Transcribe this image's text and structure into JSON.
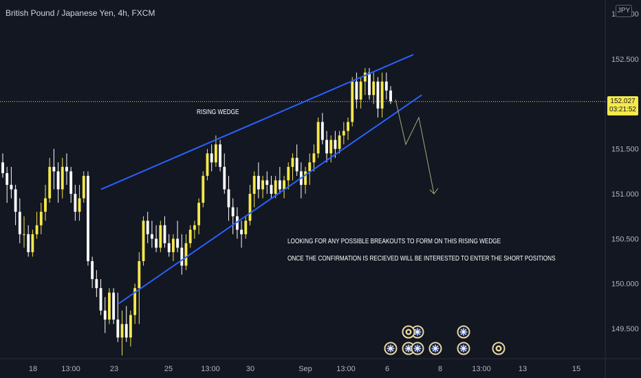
{
  "header": {
    "symbol_title": "British Pound / Japanese Yen, 4h, FXCM",
    "currency_badge": "JPY"
  },
  "price_axis": {
    "top_label": "153.000",
    "labels": [
      "152.500",
      "151.500",
      "151.000",
      "150.500",
      "150.000",
      "149.500"
    ],
    "current_price": "152.027",
    "countdown": "03:21:52"
  },
  "time_axis": {
    "labels": [
      "18",
      "13:00",
      "23",
      "25",
      "13:00",
      "30",
      "Sep",
      "13:00",
      "6",
      "8",
      "13:00",
      "13",
      "15"
    ]
  },
  "drawings": {
    "pattern_label": "RISING WEDGE",
    "note_line_1": "LOOKING FOR ANY POSSIBLE BREAKOUTS TO FORM ON THIS RISING WEDGE",
    "note_line_2": "ONCE THE CONFIRMATION IS RECIEVED WILL BE INTERESTED TO ENTER THE SHORT POSITIONS"
  },
  "event_icons": [
    "uk-flag-event-icon",
    "uk-flag-event-icon",
    "uk-flag-event-icon",
    "uk-flag-event-icon",
    "uk-flag-event-icon",
    "uk-flag-event-icon",
    "uk-flag-event-icon",
    "uk-flag-event-icon",
    "earnings-event-icon",
    "earnings-event-icon"
  ],
  "colors": {
    "background": "#131722",
    "bull_candle": "#f5e94b",
    "bear_candle": "#ffffff",
    "trendline": "#2962ff",
    "projection": "#a4ad7a",
    "price_tag": "#f5e94b"
  },
  "chart_data": {
    "type": "candlestick",
    "ylim": [
      149.25,
      153.05
    ],
    "candles": [
      [
        151.35,
        151.45,
        151.18,
        151.23
      ],
      [
        151.23,
        151.3,
        150.9,
        151.1
      ],
      [
        151.1,
        151.3,
        150.95,
        151.05
      ],
      [
        151.05,
        151.1,
        150.65,
        150.8
      ],
      [
        150.8,
        150.95,
        150.45,
        150.55
      ],
      [
        150.55,
        150.75,
        150.4,
        150.55
      ],
      [
        150.55,
        150.65,
        150.3,
        150.35
      ],
      [
        150.35,
        150.6,
        150.3,
        150.55
      ],
      [
        150.55,
        150.8,
        150.5,
        150.65
      ],
      [
        150.65,
        150.9,
        150.55,
        150.8
      ],
      [
        150.8,
        151.1,
        150.7,
        150.95
      ],
      [
        150.95,
        151.4,
        150.9,
        151.3
      ],
      [
        151.3,
        151.5,
        151.05,
        151.25
      ],
      [
        151.25,
        151.35,
        150.9,
        151.05
      ],
      [
        151.05,
        151.4,
        150.95,
        151.3
      ],
      [
        151.3,
        151.45,
        151.1,
        151.25
      ],
      [
        151.25,
        151.3,
        150.9,
        151.0
      ],
      [
        151.0,
        151.1,
        150.7,
        150.8
      ],
      [
        150.8,
        151.1,
        150.7,
        150.95
      ],
      [
        150.95,
        151.25,
        150.9,
        151.2
      ],
      [
        151.2,
        151.25,
        150.2,
        150.25
      ],
      [
        150.25,
        150.3,
        149.95,
        150.05
      ],
      [
        150.05,
        150.15,
        149.85,
        149.95
      ],
      [
        149.95,
        150.05,
        149.65,
        149.7
      ],
      [
        149.7,
        149.85,
        149.45,
        149.6
      ],
      [
        149.6,
        149.95,
        149.55,
        149.9
      ],
      [
        149.9,
        149.95,
        149.55,
        149.6
      ],
      [
        149.6,
        149.9,
        149.35,
        149.4
      ],
      [
        149.4,
        149.7,
        149.2,
        149.55
      ],
      [
        149.55,
        149.75,
        149.35,
        149.4
      ],
      [
        149.4,
        149.7,
        149.3,
        149.65
      ],
      [
        149.65,
        150.0,
        149.55,
        149.95
      ],
      [
        149.95,
        150.35,
        149.55,
        150.25
      ],
      [
        150.25,
        150.75,
        150.2,
        150.7
      ],
      [
        150.7,
        150.8,
        150.45,
        150.55
      ],
      [
        150.55,
        150.7,
        150.4,
        150.5
      ],
      [
        150.5,
        150.65,
        150.35,
        150.4
      ],
      [
        150.4,
        150.7,
        150.35,
        150.65
      ],
      [
        150.65,
        150.75,
        150.4,
        150.45
      ],
      [
        150.45,
        150.55,
        150.3,
        150.35
      ],
      [
        150.35,
        150.55,
        150.25,
        150.5
      ],
      [
        150.5,
        150.7,
        150.35,
        150.4
      ],
      [
        150.4,
        150.55,
        150.1,
        150.2
      ],
      [
        150.2,
        150.55,
        150.15,
        150.45
      ],
      [
        150.45,
        150.65,
        150.4,
        150.6
      ],
      [
        150.6,
        150.7,
        150.5,
        150.65
      ],
      [
        150.65,
        150.95,
        150.55,
        150.9
      ],
      [
        150.9,
        151.25,
        150.85,
        151.2
      ],
      [
        151.2,
        151.5,
        151.15,
        151.45
      ],
      [
        151.45,
        151.55,
        151.25,
        151.35
      ],
      [
        151.35,
        151.65,
        151.3,
        151.55
      ],
      [
        151.55,
        151.6,
        151.25,
        151.3
      ],
      [
        151.3,
        151.45,
        151.0,
        151.05
      ],
      [
        151.05,
        151.2,
        150.7,
        150.85
      ],
      [
        150.85,
        150.95,
        150.55,
        150.75
      ],
      [
        150.75,
        150.85,
        150.5,
        150.6
      ],
      [
        150.6,
        150.7,
        150.4,
        150.55
      ],
      [
        150.55,
        150.75,
        150.5,
        150.7
      ],
      [
        150.7,
        151.1,
        150.65,
        151.0
      ],
      [
        151.0,
        151.25,
        150.85,
        151.2
      ],
      [
        151.2,
        151.35,
        150.95,
        151.05
      ],
      [
        151.05,
        151.2,
        150.95,
        151.15
      ],
      [
        151.15,
        151.25,
        151.0,
        151.1
      ],
      [
        151.1,
        151.2,
        150.95,
        151.0
      ],
      [
        151.0,
        151.2,
        150.95,
        151.15
      ],
      [
        151.15,
        151.3,
        151.0,
        151.05
      ],
      [
        151.05,
        151.2,
        150.95,
        151.15
      ],
      [
        151.15,
        151.35,
        151.05,
        151.3
      ],
      [
        151.3,
        151.45,
        151.15,
        151.4
      ],
      [
        151.4,
        151.55,
        151.2,
        151.25
      ],
      [
        151.25,
        151.35,
        150.95,
        151.1
      ],
      [
        151.1,
        151.3,
        151.0,
        151.25
      ],
      [
        151.25,
        151.45,
        151.1,
        151.35
      ],
      [
        151.35,
        151.55,
        151.25,
        151.45
      ],
      [
        151.45,
        151.85,
        151.4,
        151.8
      ],
      [
        151.8,
        151.9,
        151.55,
        151.6
      ],
      [
        151.6,
        151.7,
        151.35,
        151.45
      ],
      [
        151.45,
        151.65,
        151.35,
        151.6
      ],
      [
        151.6,
        151.7,
        151.4,
        151.5
      ],
      [
        151.5,
        151.7,
        151.45,
        151.65
      ],
      [
        151.65,
        151.8,
        151.55,
        151.7
      ],
      [
        151.7,
        151.85,
        151.6,
        151.8
      ],
      [
        151.8,
        152.3,
        151.75,
        152.25
      ],
      [
        152.25,
        152.35,
        151.95,
        152.05
      ],
      [
        152.05,
        152.3,
        151.95,
        152.25
      ],
      [
        152.25,
        152.4,
        152.1,
        152.35
      ],
      [
        152.35,
        152.4,
        152.05,
        152.1
      ],
      [
        152.1,
        152.35,
        152.0,
        152.25
      ],
      [
        152.25,
        152.3,
        151.85,
        151.95
      ],
      [
        151.95,
        152.35,
        151.85,
        152.25
      ],
      [
        152.25,
        152.35,
        152.05,
        152.15
      ],
      [
        152.15,
        152.2,
        152.0,
        152.03
      ]
    ],
    "rising_wedge": {
      "upper_line": [
        [
          151.05,
          152.55
        ],
        [
          null,
          null
        ]
      ],
      "lower_line": [
        [
          149.78,
          152.1
        ],
        [
          null,
          null
        ]
      ]
    },
    "projection_path": [
      152.05,
      151.55,
      151.85,
      151.0
    ],
    "current_price": 152.027
  }
}
